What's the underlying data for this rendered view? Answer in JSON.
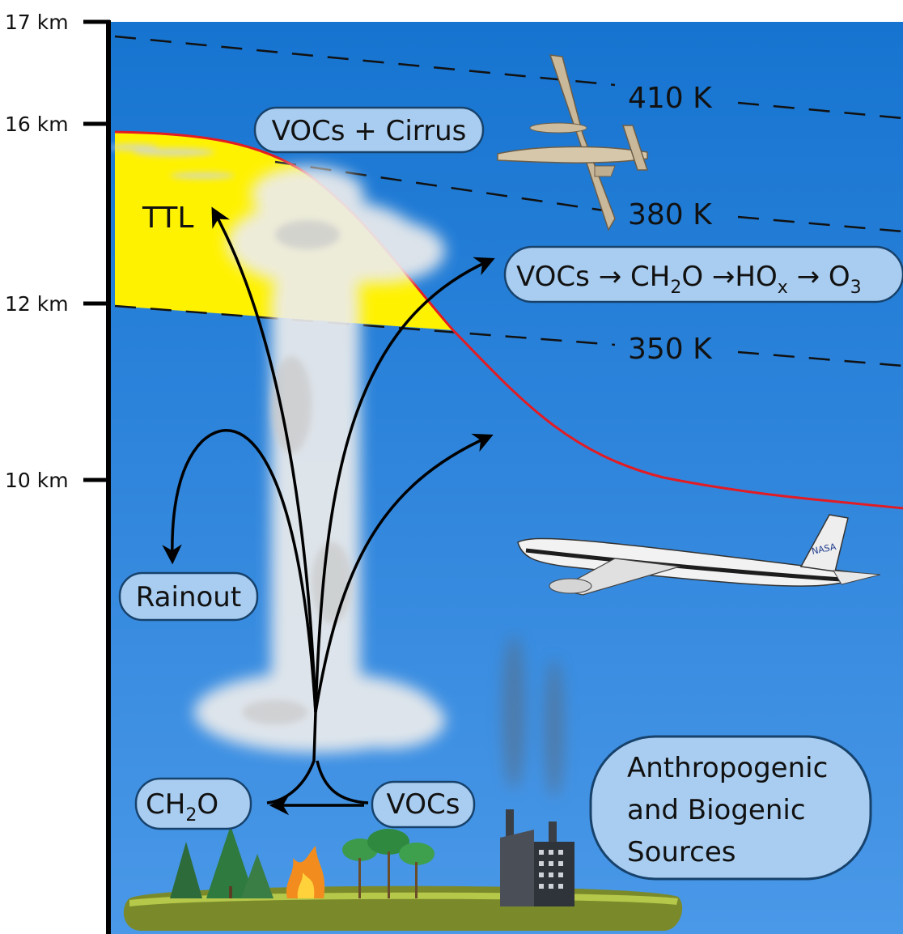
{
  "colors": {
    "sky_top": "#1678d2",
    "sky_bottom": "#4d9aea",
    "ttl_fill": "#fff200",
    "tropopause_line": "#e31b23",
    "pill_fill": "#a9cdf0",
    "pill_stroke": "#17426c",
    "ground": "#7a8a2a"
  },
  "axis": {
    "ticks": [
      {
        "label": "17 km"
      },
      {
        "label": "16 km"
      },
      {
        "label": "12 km"
      },
      {
        "label": "10 km"
      }
    ]
  },
  "isentropes": [
    {
      "label": "410 K"
    },
    {
      "label": "380 K"
    },
    {
      "label": "350 K"
    }
  ],
  "labels": {
    "ttl": "TTL",
    "vocs_cirrus": "VOCs + Cirrus",
    "chem_chain": {
      "vocs": "VOCs",
      "arrow": "→",
      "ch2o_main": "CH",
      "ch2o_sub": "2",
      "ch2o_tail": "O",
      "hox_main": "HO",
      "hox_sub": "x",
      "o3_main": "O",
      "o3_sub": "3"
    },
    "rainout": "Rainout",
    "ch2o": {
      "main": "CH",
      "sub": "2",
      "tail": "O"
    },
    "vocs_ground": "VOCs",
    "sources": [
      "Anthropogenic",
      "and Biogenic",
      "Sources"
    ],
    "nasa": "NASA"
  },
  "icons": [
    "high-altitude-aircraft-icon",
    "nasa-dc8-aircraft-icon",
    "factory-icon",
    "tree-icon",
    "fire-icon",
    "convective-cloud-icon"
  ]
}
